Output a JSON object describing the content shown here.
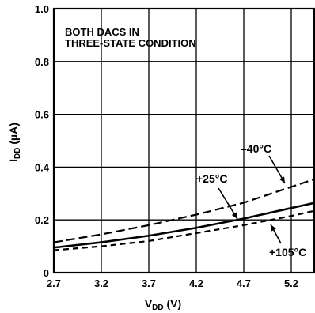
{
  "chart_data": {
    "type": "line",
    "title": "",
    "annotation": [
      "BOTH DACS IN",
      "THREE-STATE CONDITION"
    ],
    "xlabel": {
      "main": "V",
      "sub": "DD",
      "unit": " (V)"
    },
    "ylabel": {
      "main": "I",
      "sub": "DD",
      "unit": " (µA)"
    },
    "xlim": [
      2.7,
      5.45
    ],
    "ylim": [
      0,
      1.0
    ],
    "xticks": [
      2.7,
      3.2,
      3.7,
      4.2,
      4.7,
      5.2
    ],
    "xtick_labels": [
      "2.7",
      "3.2",
      "3.7",
      "4.2",
      "4.7",
      "5.2"
    ],
    "yticks": [
      0,
      0.2,
      0.4,
      0.6,
      0.8,
      1.0
    ],
    "ytick_labels": [
      "0",
      "0.2",
      "0.4",
      "0.6",
      "0.8",
      "1.0"
    ],
    "grid": true,
    "series": [
      {
        "name": "–40°C",
        "style": "dashed",
        "x": [
          2.7,
          3.2,
          3.7,
          4.2,
          4.7,
          5.2,
          5.45
        ],
        "y": [
          0.115,
          0.145,
          0.18,
          0.22,
          0.265,
          0.325,
          0.355
        ]
      },
      {
        "name": "+25°C",
        "style": "solid",
        "x": [
          2.7,
          3.2,
          3.7,
          4.2,
          4.7,
          5.2,
          5.45
        ],
        "y": [
          0.095,
          0.115,
          0.14,
          0.17,
          0.205,
          0.245,
          0.265
        ]
      },
      {
        "name": "+105°C",
        "style": "dotted",
        "x": [
          2.7,
          3.2,
          3.7,
          4.2,
          4.7,
          5.2,
          5.45
        ],
        "y": [
          0.085,
          0.1,
          0.12,
          0.15,
          0.18,
          0.215,
          0.235
        ]
      }
    ]
  }
}
